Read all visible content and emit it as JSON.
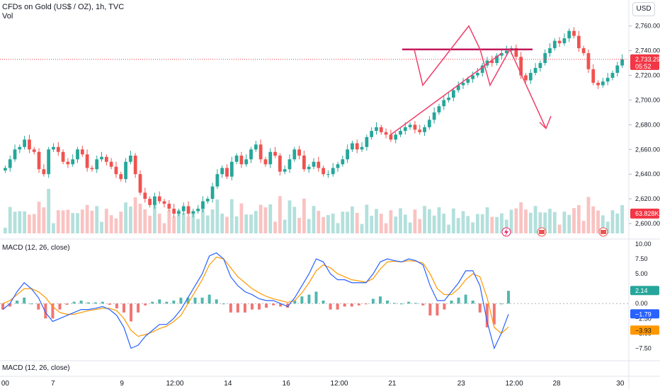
{
  "header": {
    "title": "CFDs on Gold (US$ / OZ), 1h, TVC",
    "volume_label": "Vol",
    "currency_button": "USD"
  },
  "price_badge": {
    "price": "2,733.29",
    "countdown": "05:52",
    "color": "#f23645"
  },
  "volume_badge": {
    "value": "63.828K",
    "color": "#f23645"
  },
  "macd_badges": {
    "hist": "2.14",
    "macd": "−1.79",
    "signal": "−3.93"
  },
  "colors": {
    "up": "#26a69a",
    "down": "#ef5350",
    "macd_line": "#2962ff",
    "signal_line": "#ff9800",
    "drawing": "#ef3f6a",
    "neckline": "#c2185b"
  },
  "panes": {
    "macd_label": "MACD (12, 26, close)",
    "macd2_label": "MACD (12, 26, close)"
  },
  "icons": [
    "lightning-icon",
    "us-flag-icon",
    "us-flag-icon"
  ],
  "chart_data": [
    {
      "type": "candlestick",
      "title": "CFDs on Gold (US$ / OZ), 1h, TVC",
      "ylim": [
        2592,
        2765
      ],
      "yticks": [
        "2,760.00",
        "2,740.00",
        "2,720.00",
        "2,700.00",
        "2,680.00",
        "2,660.00",
        "2,640.00",
        "2,620.00",
        "2,600.00"
      ],
      "yticks_values": [
        2760,
        2740,
        2720,
        2700,
        2680,
        2660,
        2640,
        2620,
        2600
      ],
      "x_labels": [
        {
          "label": "00",
          "at": 0
        },
        {
          "label": "7",
          "at": 9
        },
        {
          "label": "9",
          "at": 22
        },
        {
          "label": "12:00",
          "at": 32
        },
        {
          "label": "14",
          "at": 42
        },
        {
          "label": "16",
          "at": 53
        },
        {
          "label": "12:00",
          "at": 63
        },
        {
          "label": "21",
          "at": 73
        },
        {
          "label": "23",
          "at": 86
        },
        {
          "label": "12:00",
          "at": 96
        },
        {
          "label": "28",
          "at": 104
        },
        {
          "label": "30",
          "at": 116
        }
      ],
      "close": [
        2645,
        2652,
        2660,
        2662,
        2668,
        2660,
        2658,
        2644,
        2640,
        2660,
        2662,
        2658,
        2650,
        2648,
        2652,
        2660,
        2656,
        2645,
        2644,
        2652,
        2654,
        2650,
        2646,
        2640,
        2636,
        2650,
        2655,
        2640,
        2625,
        2620,
        2615,
        2622,
        2618,
        2616,
        2612,
        2608,
        2610,
        2614,
        2608,
        2610,
        2612,
        2618,
        2620,
        2630,
        2640,
        2645,
        2638,
        2650,
        2655,
        2648,
        2652,
        2660,
        2664,
        2652,
        2648,
        2658,
        2655,
        2642,
        2644,
        2652,
        2660,
        2655,
        2644,
        2646,
        2650,
        2645,
        2640,
        2640,
        2645,
        2648,
        2652,
        2660,
        2665,
        2660,
        2662,
        2670,
        2675,
        2678,
        2674,
        2672,
        2668,
        2672,
        2675,
        2678,
        2680,
        2676,
        2674,
        2678,
        2684,
        2690,
        2695,
        2700,
        2702,
        2708,
        2712,
        2714,
        2717,
        2720,
        2722,
        2728,
        2732,
        2730,
        2736,
        2738,
        2740,
        2742,
        2735,
        2720,
        2716,
        2722,
        2726,
        2730,
        2738,
        2742,
        2748,
        2746,
        2750,
        2756,
        2752,
        2742,
        2738,
        2725,
        2714,
        2712,
        2715,
        2718,
        2722,
        2728,
        2733
      ],
      "volume_note": "volume bars rendered from series shape"
    },
    {
      "type": "line",
      "title": "MACD (12, 26, close)",
      "ylim": [
        -9,
        10
      ],
      "yticks": [
        "10.00",
        "7.50",
        "5.00",
        "2.50",
        "0.00",
        "−2.50",
        "−5.00",
        "−7.50"
      ],
      "yticks_values": [
        10,
        7.5,
        5,
        2.5,
        0,
        -2.5,
        -5,
        -7.5
      ],
      "series": [
        {
          "name": "MACD",
          "values": [
            -1,
            0,
            2,
            3.5,
            2.5,
            1,
            -1.5,
            -3,
            -2.5,
            -2,
            -1.5,
            -1,
            -1,
            -0.8,
            -0.5,
            -1,
            -2,
            -4,
            -7.5,
            -7,
            -5.5,
            -4.5,
            -3.5,
            -3.5,
            -2.5,
            -1,
            1,
            3,
            5,
            8,
            8.5,
            7.5,
            4.5,
            3,
            2,
            1.5,
            0.8,
            0.5,
            0.5,
            0,
            -0.5,
            1,
            3,
            5,
            7.5,
            7,
            5,
            4,
            4,
            3.5,
            3.5,
            3.5,
            5,
            7,
            7.5,
            7.2,
            7,
            7.5,
            7.2,
            6.5,
            3,
            0.5,
            0.5,
            2,
            3.5,
            5.5,
            5.5,
            3,
            -3,
            -7.5,
            -5,
            -1.79
          ]
        },
        {
          "name": "Signal",
          "values": [
            0,
            0.5,
            1.5,
            2.5,
            2.5,
            2,
            1,
            -0.5,
            -1.5,
            -1.8,
            -1.8,
            -1.5,
            -1.2,
            -1,
            -0.8,
            -0.8,
            -1.2,
            -2.5,
            -4.5,
            -5.5,
            -5.2,
            -4.8,
            -4.2,
            -3.8,
            -3,
            -2,
            0,
            2,
            4,
            6.5,
            7.8,
            7.5,
            6,
            4.5,
            3.5,
            2.5,
            1.8,
            1.2,
            0.8,
            0.5,
            0.2,
            0.5,
            1.8,
            3.5,
            5.5,
            6.5,
            6,
            5,
            4.5,
            4,
            3.8,
            3.6,
            4.2,
            5.8,
            7,
            7.1,
            7,
            7.2,
            7.1,
            6.8,
            5,
            2.5,
            1.5,
            1.5,
            2.5,
            4,
            5,
            4.5,
            1,
            -4,
            -5,
            -3.93
          ]
        }
      ]
    }
  ]
}
